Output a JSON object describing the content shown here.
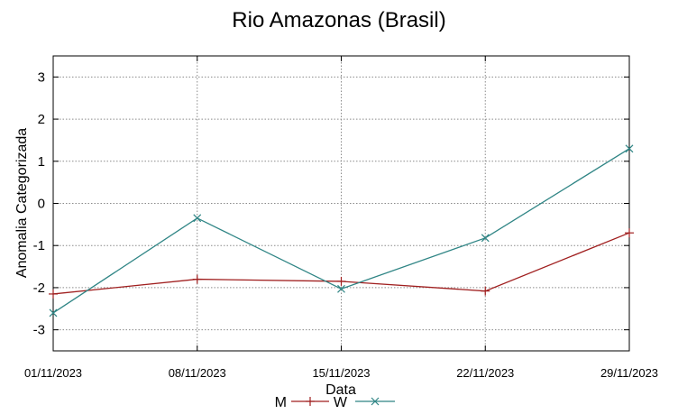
{
  "chart_data": {
    "type": "line",
    "title": "Rio Amazonas (Brasil)",
    "xlabel": "Data",
    "ylabel": "Anomalia Categorizada",
    "categories": [
      "01/11/2023",
      "08/11/2023",
      "15/11/2023",
      "22/11/2023",
      "29/11/2023"
    ],
    "ylim": [
      -3.5,
      3.5
    ],
    "yticks": [
      -3,
      -2,
      -1,
      0,
      1,
      2,
      3
    ],
    "grid": true,
    "legend_position": "bottom",
    "series": [
      {
        "name": "M",
        "color": "#a01f1f",
        "marker": "+",
        "values": [
          -2.15,
          -1.8,
          -1.85,
          -2.08,
          -0.7
        ]
      },
      {
        "name": "W",
        "color": "#2f8585",
        "marker": "x",
        "values": [
          -2.6,
          -0.35,
          -2.03,
          -0.82,
          1.3
        ]
      }
    ]
  }
}
